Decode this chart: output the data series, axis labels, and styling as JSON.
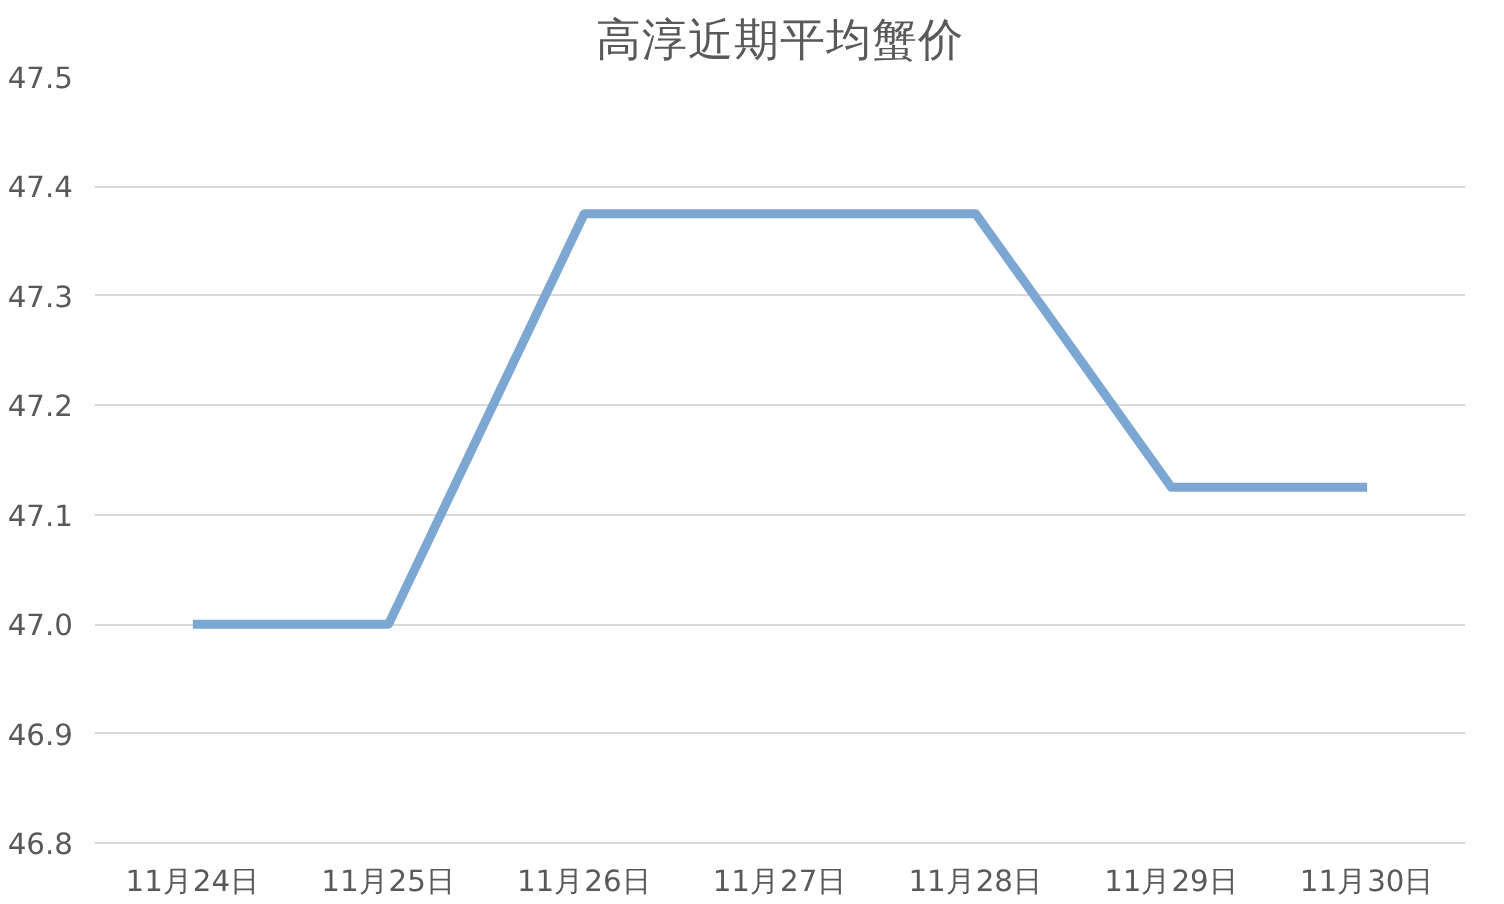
{
  "chart_data": {
    "type": "line",
    "title": "高淳近期平均蟹价",
    "categories": [
      "11月24日",
      "11月25日",
      "11月26日",
      "11月27日",
      "11月28日",
      "11月29日",
      "11月30日"
    ],
    "series": [
      {
        "color": "#7ba7d2",
        "values": [
          47.0,
          47.0,
          47.375,
          47.375,
          47.375,
          47.125,
          47.125
        ]
      }
    ],
    "ylim": [
      46.8,
      47.5
    ],
    "yticks": [
      46.8,
      46.9,
      {
        "value": 47,
        "label": "47.0"
      },
      47.1,
      47.2,
      47.3,
      47.4,
      47.5
    ],
    "grid": "y",
    "marker": "none",
    "line_style": "solid"
  }
}
